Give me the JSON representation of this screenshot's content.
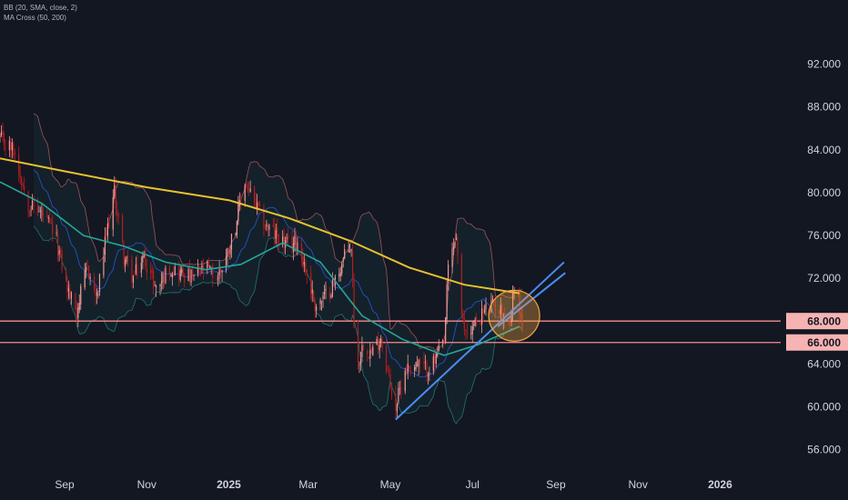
{
  "legend": {
    "bb": "BB (20, SMA, close, 2)",
    "ma": "MA Cross (50, 200)"
  },
  "colors": {
    "background": "#131722",
    "up": "#ef9a9a",
    "down": "#b71c1c",
    "bb_basis": "#2962ff",
    "bb_band": "#e57373",
    "bb_fill": "#26a69a",
    "ma50": "#26a69a",
    "ma200": "#e7c12f",
    "trendline": "#4c8bf5",
    "level": "#f48c8c",
    "circle": "#f5a742",
    "axis_text": "#d1d4dc",
    "price_label": "#f7b3b3"
  },
  "chart_data": {
    "type": "candlestick",
    "title": "",
    "xlabel": "",
    "ylabel": "",
    "ylim": [
      54.0,
      98.0
    ],
    "y_ticks": [
      56,
      60,
      64,
      68,
      72,
      76,
      80,
      84,
      88,
      92
    ],
    "y_tick_labels": [
      "56.000",
      "60.000",
      "64.000",
      "68.000",
      "72.000",
      "76.000",
      "80.000",
      "84.000",
      "88.000",
      "92.000"
    ],
    "x_tick_labels": [
      "Sep",
      "Nov",
      "2025",
      "Mar",
      "May",
      "Jul",
      "Sep",
      "Nov",
      "2026"
    ],
    "x_tick_dates": [
      "2024-09-01",
      "2024-11-01",
      "2025-01-01",
      "2025-03-01",
      "2025-05-01",
      "2025-07-01",
      "2025-09-01",
      "2025-11-01",
      "2026-01-01"
    ],
    "x_start": "2024-07-15",
    "x_end": "2026-02-15",
    "close_anchors": [
      [
        "2024-07-15",
        85.0
      ],
      [
        "2024-07-25",
        84.0
      ],
      [
        "2024-08-05",
        79.0
      ],
      [
        "2024-08-15",
        78.0
      ],
      [
        "2024-08-25",
        76.0
      ],
      [
        "2024-09-03",
        71.0
      ],
      [
        "2024-09-10",
        69.0
      ],
      [
        "2024-09-18",
        73.0
      ],
      [
        "2024-09-25",
        70.0
      ],
      [
        "2024-10-02",
        76.0
      ],
      [
        "2024-10-08",
        80.0
      ],
      [
        "2024-10-15",
        74.0
      ],
      [
        "2024-10-22",
        72.0
      ],
      [
        "2024-10-30",
        74.0
      ],
      [
        "2024-11-08",
        71.0
      ],
      [
        "2024-11-18",
        73.0
      ],
      [
        "2024-11-26",
        72.5
      ],
      [
        "2024-12-05",
        72.0
      ],
      [
        "2024-12-15",
        73.0
      ],
      [
        "2024-12-23",
        72.0
      ],
      [
        "2024-12-30",
        74.0
      ],
      [
        "2025-01-06",
        77.0
      ],
      [
        "2025-01-13",
        81.0
      ],
      [
        "2025-01-20",
        79.0
      ],
      [
        "2025-01-28",
        77.0
      ],
      [
        "2025-02-05",
        76.0
      ],
      [
        "2025-02-14",
        75.0
      ],
      [
        "2025-02-21",
        75.5
      ],
      [
        "2025-03-01",
        72.0
      ],
      [
        "2025-03-06",
        69.5
      ],
      [
        "2025-03-12",
        70.0
      ],
      [
        "2025-03-20",
        71.5
      ],
      [
        "2025-03-28",
        74.0
      ],
      [
        "2025-04-02",
        75.0
      ],
      [
        "2025-04-04",
        68.0
      ],
      [
        "2025-04-07",
        64.0
      ],
      [
        "2025-04-11",
        66.0
      ],
      [
        "2025-04-17",
        65.0
      ],
      [
        "2025-04-24",
        66.5
      ],
      [
        "2025-05-02",
        61.5
      ],
      [
        "2025-05-05",
        60.0
      ],
      [
        "2025-05-12",
        63.5
      ],
      [
        "2025-05-20",
        64.0
      ],
      [
        "2025-05-27",
        63.5
      ],
      [
        "2025-06-02",
        64.0
      ],
      [
        "2025-06-10",
        66.0
      ],
      [
        "2025-06-13",
        73.0
      ],
      [
        "2025-06-19",
        76.0
      ],
      [
        "2025-06-23",
        68.0
      ],
      [
        "2025-06-26",
        67.0
      ],
      [
        "2025-07-02",
        67.5
      ],
      [
        "2025-07-10",
        69.0
      ],
      [
        "2025-07-18",
        69.5
      ],
      [
        "2025-07-25",
        68.5
      ],
      [
        "2025-07-29",
        68.0
      ],
      [
        "2025-08-01",
        71.5
      ],
      [
        "2025-08-04",
        70.0
      ],
      [
        "2025-08-07",
        67.5
      ]
    ],
    "ma200": [
      [
        "2024-07-15",
        83.2
      ],
      [
        "2024-09-01",
        82.0
      ],
      [
        "2024-11-01",
        80.5
      ],
      [
        "2025-01-01",
        79.3
      ],
      [
        "2025-02-15",
        77.6
      ],
      [
        "2025-04-01",
        75.5
      ],
      [
        "2025-05-15",
        73.0
      ],
      [
        "2025-06-25",
        71.4
      ],
      [
        "2025-08-05",
        70.6
      ]
    ],
    "ma50": [
      [
        "2024-07-15",
        81.0
      ],
      [
        "2024-08-15",
        79.0
      ],
      [
        "2024-09-15",
        76.0
      ],
      [
        "2024-10-15",
        75.0
      ],
      [
        "2024-11-15",
        73.5
      ],
      [
        "2024-12-15",
        72.8
      ],
      [
        "2025-01-10",
        73.3
      ],
      [
        "2025-02-10",
        75.3
      ],
      [
        "2025-03-10",
        73.5
      ],
      [
        "2025-04-10",
        68.5
      ],
      [
        "2025-05-10",
        66.3
      ],
      [
        "2025-06-10",
        64.8
      ],
      [
        "2025-07-05",
        65.8
      ],
      [
        "2025-08-05",
        67.5
      ]
    ],
    "trendlines": [
      {
        "from": [
          "2025-05-05",
          58.8
        ],
        "to": [
          "2025-09-07",
          73.5
        ]
      },
      {
        "from": [
          "2025-07-20",
          67.5
        ],
        "to": [
          "2025-09-08",
          72.5
        ]
      }
    ],
    "levels": [
      68.0,
      66.0
    ],
    "price_labels": [
      "68.000",
      "66.000"
    ],
    "highlight_circle": {
      "center": [
        "2025-08-01",
        68.5
      ]
    }
  }
}
